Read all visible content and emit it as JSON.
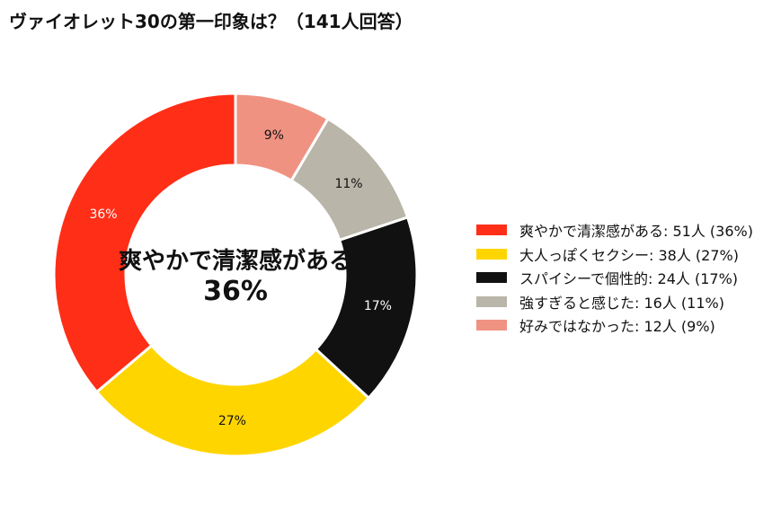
{
  "chart_data": {
    "type": "pie",
    "variant": "donut",
    "title": "ヴァイオレット30の第一印象は？（141人回答）",
    "unit": "人",
    "center_label": {
      "text": "爽やかで清潔感がある",
      "value": "36%"
    },
    "legend_position": "right",
    "slices": [
      {
        "label": "爽やかで清潔感がある",
        "count": 51,
        "percent": 36,
        "color": "#ff2e17",
        "legend_text": "爽やかで清潔感がある:  51人 (36%)",
        "pct_text": "36%",
        "text_color": "#ffffff"
      },
      {
        "label": "大人っぽくセクシー",
        "count": 38,
        "percent": 27,
        "color": "#ffd500",
        "legend_text": "大人っぽくセクシー:  38人 (27%)",
        "pct_text": "27%",
        "text_color": "#111111"
      },
      {
        "label": "スパイシーで個性的",
        "count": 24,
        "percent": 17,
        "color": "#111111",
        "legend_text": "スパイシーで個性的:  24人 (17%)",
        "pct_text": "17%",
        "text_color": "#ffffff"
      },
      {
        "label": "強すぎると感じた",
        "count": 16,
        "percent": 11,
        "color": "#b9b5a8",
        "legend_text": "強すぎると感じた:  16人 (11%)",
        "pct_text": "11%",
        "text_color": "#111111"
      },
      {
        "label": "好みではなかった",
        "count": 12,
        "percent": 9,
        "color": "#f09282",
        "legend_text": "好みではなかった:  12人 (9%)",
        "pct_text": "9%",
        "text_color": "#111111"
      }
    ]
  }
}
